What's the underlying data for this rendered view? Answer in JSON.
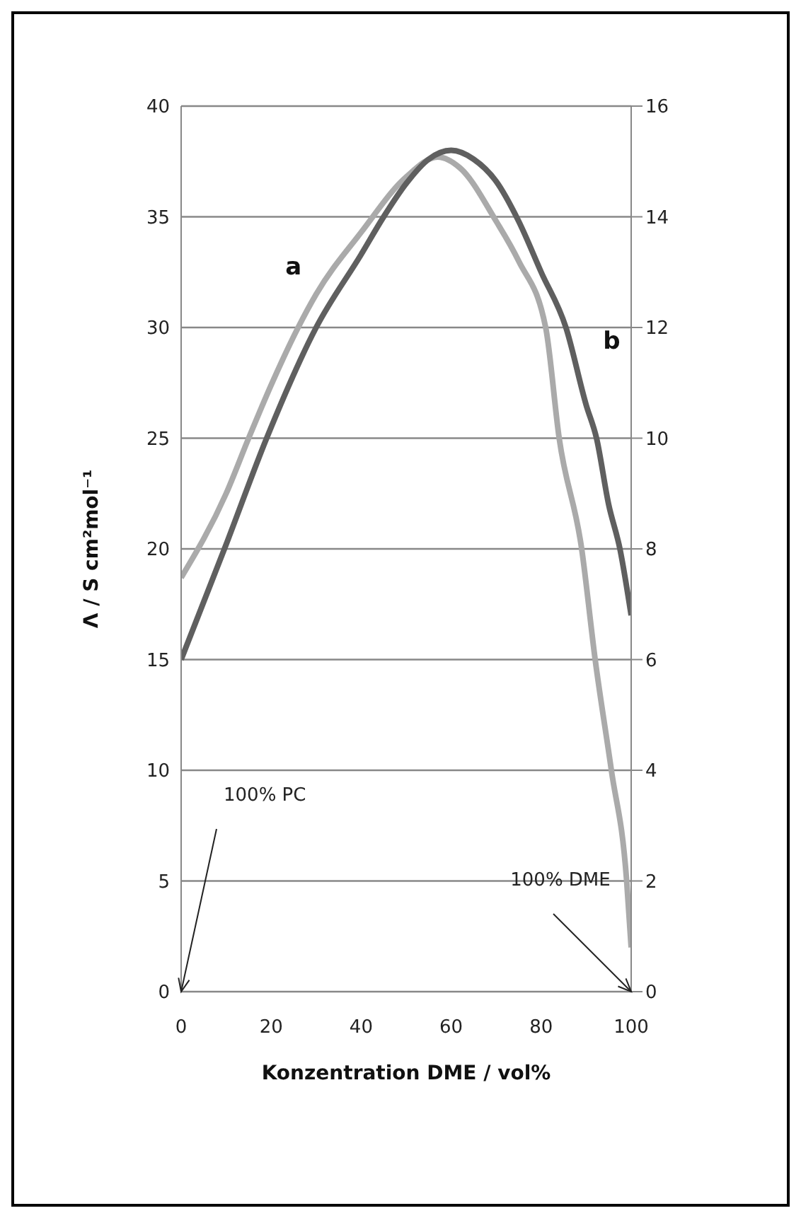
{
  "chart_data": {
    "type": "line",
    "xlabel": "Konzentration DME / vol%",
    "ylabel": "Λ / S cm²mol⁻¹",
    "xlim": [
      0,
      100
    ],
    "xticks": [
      0,
      20,
      40,
      60,
      80,
      100
    ],
    "ylim": [
      0,
      40
    ],
    "yticks": [
      0,
      5,
      10,
      15,
      20,
      25,
      30,
      35,
      40
    ],
    "y2lim": [
      0,
      16
    ],
    "y2ticks": [
      0,
      2,
      4,
      6,
      8,
      10,
      12,
      14,
      16
    ],
    "grid": "y",
    "marker": "none",
    "line_style": "solid",
    "legend": false,
    "series": [
      {
        "name": "a",
        "color": "#aaaaaa",
        "x": [
          0,
          10,
          15,
          20,
          26,
          30,
          40,
          50,
          57,
          62,
          70,
          75,
          81,
          84,
          89,
          92,
          95.6,
          99,
          100
        ],
        "values": [
          18.7,
          22.5,
          25,
          27.4,
          30,
          31.5,
          34.3,
          36.8,
          37.7,
          37.2,
          34.8,
          33,
          30,
          25,
          20,
          15,
          10,
          5,
          2
        ]
      },
      {
        "name": "b",
        "color": "#5f5f5f",
        "x": [
          0,
          10,
          19,
          30,
          40,
          45,
          50,
          55,
          60,
          65,
          70,
          75,
          80,
          85.5,
          90,
          92.3,
          95,
          97.5,
          100
        ],
        "values": [
          15,
          20.2,
          25,
          30,
          33.3,
          35,
          36.5,
          37.6,
          38,
          37.6,
          36.6,
          34.8,
          32.5,
          30,
          26.5,
          25,
          22,
          20,
          17
        ]
      }
    ],
    "annotations": [
      "100% PC",
      "100% DME"
    ]
  }
}
